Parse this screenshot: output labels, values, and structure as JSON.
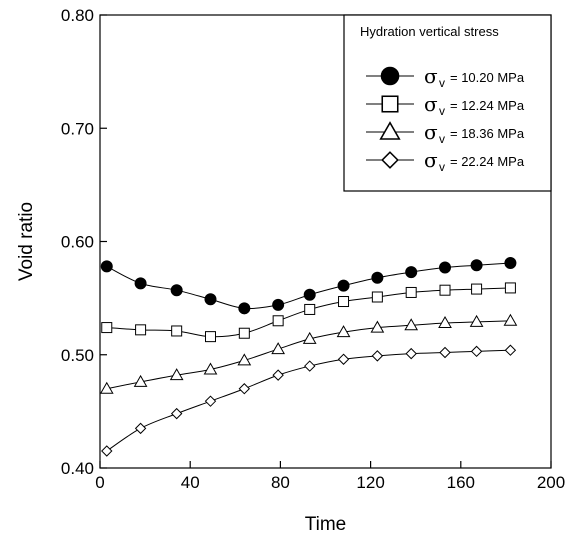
{
  "chart_data": {
    "type": "line",
    "xlabel": "Time",
    "ylabel": "Void ratio",
    "xlim": [
      0,
      200
    ],
    "ylim": [
      0.4,
      0.8
    ],
    "x_ticks": [
      0,
      40,
      80,
      120,
      160,
      200
    ],
    "x_tick_labels": [
      "0",
      "40",
      "80",
      "120",
      "160",
      "200"
    ],
    "y_ticks": [
      0.4,
      0.5,
      0.6,
      0.7,
      0.8
    ],
    "y_tick_labels": [
      "0.40",
      "0.50",
      "0.60",
      "0.70",
      "0.80"
    ],
    "grid": false,
    "legend": {
      "title": "Hydration vertical stress",
      "placement": "top-right"
    },
    "series": [
      {
        "name": "σv = 10.20 MPa",
        "symbol": "σ",
        "subscript": "v",
        "value_text": "= 10.20 MPa",
        "marker": "filled-circle",
        "x": [
          3,
          18,
          34,
          49,
          64,
          79,
          93,
          108,
          123,
          138,
          153,
          167,
          182
        ],
        "y": [
          0.578,
          0.563,
          0.557,
          0.549,
          0.541,
          0.544,
          0.553,
          0.561,
          0.568,
          0.573,
          0.577,
          0.579,
          0.581
        ]
      },
      {
        "name": "σv = 12.24 MPa",
        "symbol": "σ",
        "subscript": "v",
        "value_text": "= 12.24 MPa",
        "marker": "open-square",
        "x": [
          3,
          18,
          34,
          49,
          64,
          79,
          93,
          108,
          123,
          138,
          153,
          167,
          182
        ],
        "y": [
          0.524,
          0.522,
          0.521,
          0.516,
          0.519,
          0.53,
          0.54,
          0.547,
          0.551,
          0.555,
          0.557,
          0.558,
          0.559
        ]
      },
      {
        "name": "σv = 18.36 MPa",
        "symbol": "σ",
        "subscript": "v",
        "value_text": "= 18.36 MPa",
        "marker": "open-triangle",
        "x": [
          3,
          18,
          34,
          49,
          64,
          79,
          93,
          108,
          123,
          138,
          153,
          167,
          182
        ],
        "y": [
          0.47,
          0.476,
          0.482,
          0.487,
          0.495,
          0.505,
          0.514,
          0.52,
          0.524,
          0.526,
          0.528,
          0.529,
          0.53
        ]
      },
      {
        "name": "σv = 22.24 MPa",
        "symbol": "σ",
        "subscript": "v",
        "value_text": "= 22.24 MPa",
        "marker": "open-diamond",
        "x": [
          3,
          18,
          34,
          49,
          64,
          79,
          93,
          108,
          123,
          138,
          153,
          167,
          182
        ],
        "y": [
          0.415,
          0.435,
          0.448,
          0.459,
          0.47,
          0.482,
          0.49,
          0.496,
          0.499,
          0.501,
          0.502,
          0.503,
          0.504
        ]
      }
    ]
  }
}
